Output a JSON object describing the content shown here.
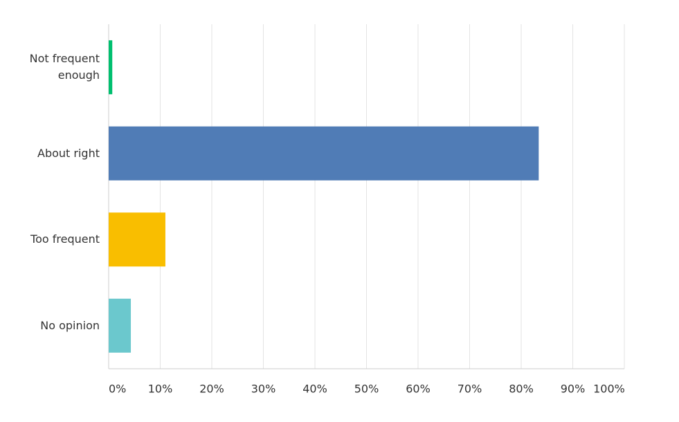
{
  "chart_data": {
    "type": "bar",
    "orientation": "horizontal",
    "categories": [
      "Not frequent enough",
      "About right",
      "Too frequent",
      "No opinion"
    ],
    "values": [
      0.7,
      83.4,
      11.0,
      4.3
    ],
    "colors": [
      "#00bf6f",
      "#507cb6",
      "#f9be00",
      "#6bc8cd"
    ],
    "xlim": [
      0,
      100
    ],
    "xticks": [
      {
        "value": 0,
        "label": "0%"
      },
      {
        "value": 10,
        "label": "10%"
      },
      {
        "value": 20,
        "label": "20%"
      },
      {
        "value": 30,
        "label": "30%"
      },
      {
        "value": 40,
        "label": "40%"
      },
      {
        "value": 50,
        "label": "50%"
      },
      {
        "value": 60,
        "label": "60%"
      },
      {
        "value": 70,
        "label": "70%"
      },
      {
        "value": 80,
        "label": "80%"
      },
      {
        "value": 90,
        "label": "90%"
      },
      {
        "value": 100,
        "label": "100%"
      }
    ],
    "grid": true
  }
}
